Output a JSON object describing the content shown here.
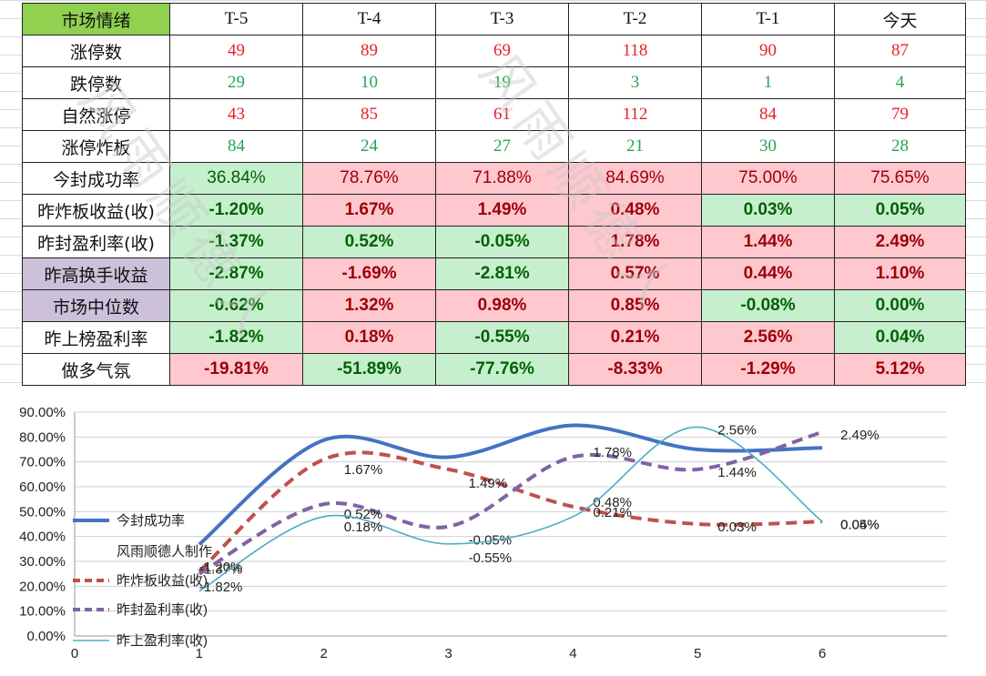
{
  "table": {
    "corner": "市场情绪",
    "columns": [
      "T-5",
      "T-4",
      "T-3",
      "T-2",
      "T-1",
      "今天"
    ],
    "count_rows": [
      {
        "label": "涨停数",
        "color": "red",
        "values": [
          "49",
          "89",
          "69",
          "118",
          "90",
          "87"
        ]
      },
      {
        "label": "跌停数",
        "color": "green",
        "values": [
          "29",
          "10",
          "19",
          "3",
          "1",
          "4"
        ]
      },
      {
        "label": "自然涨停",
        "color": "red",
        "values": [
          "43",
          "85",
          "61",
          "112",
          "84",
          "79"
        ]
      },
      {
        "label": "涨停炸板",
        "color": "green",
        "values": [
          "84",
          "24",
          "27",
          "21",
          "30",
          "28"
        ]
      }
    ],
    "pct_rows": [
      {
        "label": "今封成功率",
        "bold": false,
        "label_bg": "none",
        "values": [
          "36.84%",
          "78.76%",
          "71.88%",
          "84.69%",
          "75.00%",
          "75.65%"
        ],
        "tones": [
          "neg",
          "pos",
          "pos",
          "pos",
          "pos",
          "pos"
        ]
      },
      {
        "label": "昨炸板收益(收)",
        "bold": true,
        "label_bg": "none",
        "values": [
          "-1.20%",
          "1.67%",
          "1.49%",
          "0.48%",
          "0.03%",
          "0.05%"
        ],
        "tones": [
          "neg",
          "pos",
          "pos",
          "pos",
          "neg",
          "neg"
        ]
      },
      {
        "label": "昨封盈利率(收)",
        "bold": true,
        "label_bg": "none",
        "values": [
          "-1.37%",
          "0.52%",
          "-0.05%",
          "1.78%",
          "1.44%",
          "2.49%"
        ],
        "tones": [
          "neg",
          "neg",
          "neg",
          "pos",
          "pos",
          "pos"
        ]
      },
      {
        "label": "昨高换手收益",
        "bold": true,
        "label_bg": "purple",
        "values": [
          "-2.87%",
          "-1.69%",
          "-2.81%",
          "0.57%",
          "0.44%",
          "1.10%"
        ],
        "tones": [
          "neg",
          "pos",
          "neg",
          "pos",
          "pos",
          "pos"
        ]
      },
      {
        "label": "市场中位数",
        "bold": true,
        "label_bg": "purple",
        "values": [
          "-0.62%",
          "1.32%",
          "0.98%",
          "0.85%",
          "-0.08%",
          "0.00%"
        ],
        "tones": [
          "neg",
          "pos",
          "pos",
          "pos",
          "neg",
          "neg"
        ]
      },
      {
        "label": "昨上榜盈利率",
        "bold": true,
        "label_bg": "none",
        "values": [
          "-1.82%",
          "0.18%",
          "-0.55%",
          "0.21%",
          "2.56%",
          "0.04%"
        ],
        "tones": [
          "neg",
          "pos",
          "neg",
          "pos",
          "pos",
          "neg"
        ]
      },
      {
        "label": "做多气氛",
        "bold": true,
        "label_bg": "none",
        "values": [
          "-19.81%",
          "-51.89%",
          "-77.76%",
          "-8.33%",
          "-1.29%",
          "5.12%"
        ],
        "tones": [
          "pos",
          "neg",
          "neg",
          "pos",
          "pos",
          "pos"
        ]
      }
    ]
  },
  "watermark": "风雨顺德人",
  "colors": {
    "corner_bg": "#92d050",
    "purple_bg": "#ccc0da",
    "pos_bg": "#ffc7ce",
    "pos_fg": "#9c0006",
    "neg_bg": "#c6efce",
    "neg_fg": "#006100",
    "count_red": "#e8202a",
    "count_green": "#26a552"
  },
  "chart_data": {
    "type": "line",
    "x": [
      1,
      2,
      3,
      4,
      5,
      6
    ],
    "xlim": [
      0,
      7
    ],
    "xticks": [
      "0",
      "1",
      "2",
      "3",
      "4",
      "5",
      "6"
    ],
    "ylim": [
      0,
      90
    ],
    "yticks": [
      "0.00%",
      "10.00%",
      "20.00%",
      "30.00%",
      "40.00%",
      "50.00%",
      "60.00%",
      "70.00%",
      "80.00%",
      "90.00%"
    ],
    "grid": true,
    "smooth": true,
    "legend_position": "left",
    "legend_extra_text": "风雨顺德人制作",
    "series": [
      {
        "name": "今封成功率",
        "color": "#4472c4",
        "dash": "solid",
        "width": 4,
        "values": [
          36.84,
          78.76,
          71.88,
          84.69,
          75.0,
          75.65
        ],
        "labels": [
          "",
          "",
          "",
          "",
          "",
          ""
        ]
      },
      {
        "name": "昨炸板收益(收)",
        "color": "#c0504d",
        "dash": "dashed",
        "width": 4,
        "values": [
          26.0,
          71.0,
          67.0,
          52.0,
          45.0,
          46.0
        ],
        "labels": [
          "-1.20%",
          "1.67%",
          "1.49%",
          "0.48%",
          "0.03%",
          "0.05%"
        ]
      },
      {
        "name": "昨封盈利率(收)",
        "color": "#8064a2",
        "dash": "dashed",
        "width": 4,
        "values": [
          25.0,
          53.0,
          44.0,
          72.0,
          67.0,
          82.0
        ],
        "labels": [
          "-1.37%",
          "0.52%",
          "-0.05%",
          "1.78%",
          "1.44%",
          "2.49%"
        ]
      },
      {
        "name": "昨上盈利率(收)",
        "color": "#4bacc6",
        "dash": "solid",
        "width": 1.6,
        "values": [
          18.0,
          48.0,
          37.0,
          48.0,
          84.0,
          46.0
        ],
        "labels": [
          "-1.82%",
          "0.18%",
          "-0.55%",
          "0.21%",
          "2.56%",
          "0.04%"
        ]
      }
    ]
  }
}
